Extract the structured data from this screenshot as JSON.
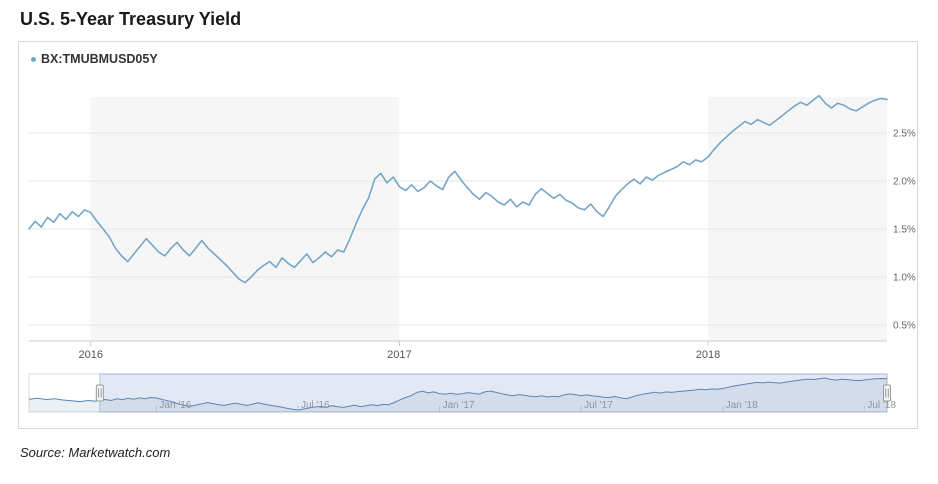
{
  "page": {
    "title": "U.S. 5-Year Treasury Yield",
    "source": "Source: Marketwatch.com"
  },
  "legend": {
    "symbol": "BX:TMUBMUSD05Y"
  },
  "colors": {
    "line": "#74a6c9",
    "nav_line": "#5b84ae",
    "band": "#f6f6f6",
    "grid": "#e6e6e6",
    "axis": "#cccccc",
    "tick_label": "#666666",
    "x_label": "#555555",
    "nav_label": "#999999",
    "mask": "#6685c2",
    "mask_edge": "#8aa4cc",
    "handle_fill": "#f4f4f4",
    "handle_stroke": "#999999",
    "legend_dot": "#74a6c9"
  },
  "chart_data": {
    "type": "line",
    "title": "U.S. 5-Year Treasury Yield",
    "series_name": "BX:TMUBMUSD05Y",
    "xlabel": "",
    "ylabel": "",
    "y_ticks": [
      "0.5%",
      "1.0%",
      "1.5%",
      "2.0%",
      "2.5%"
    ],
    "y_tick_values": [
      0.5,
      1.0,
      1.5,
      2.0,
      2.5
    ],
    "x_ticks_main": [
      {
        "t": 2016.0,
        "label": "2016"
      },
      {
        "t": 2017.0,
        "label": "2017"
      },
      {
        "t": 2018.0,
        "label": "2018"
      }
    ],
    "x_ticks_nav": [
      {
        "t": 2016.0,
        "label": "Jan '16"
      },
      {
        "t": 2016.5,
        "label": "Jul '16"
      },
      {
        "t": 2017.0,
        "label": "Jan '17"
      },
      {
        "t": 2017.5,
        "label": "Jul '17"
      },
      {
        "t": 2018.0,
        "label": "Jan '18"
      },
      {
        "t": 2018.5,
        "label": "Jul '18"
      }
    ],
    "main_window": [
      2015.8,
      2018.58
    ],
    "ylim_main": [
      0.333,
      2.875
    ],
    "bands": [
      [
        2016.0,
        2017.0
      ],
      [
        2018.0,
        2018.58
      ]
    ],
    "grid": true,
    "points": [
      [
        2015.55,
        1.6
      ],
      [
        2015.58,
        1.66
      ],
      [
        2015.61,
        1.58
      ],
      [
        2015.64,
        1.63
      ],
      [
        2015.67,
        1.55
      ],
      [
        2015.7,
        1.5
      ],
      [
        2015.73,
        1.45
      ],
      [
        2015.76,
        1.52
      ],
      [
        2015.78,
        1.48
      ],
      [
        2015.8,
        1.5
      ],
      [
        2015.82,
        1.58
      ],
      [
        2015.84,
        1.52
      ],
      [
        2015.86,
        1.62
      ],
      [
        2015.88,
        1.57
      ],
      [
        2015.9,
        1.66
      ],
      [
        2015.92,
        1.6
      ],
      [
        2015.94,
        1.68
      ],
      [
        2015.96,
        1.63
      ],
      [
        2015.98,
        1.7
      ],
      [
        2016.0,
        1.67
      ],
      [
        2016.02,
        1.58
      ],
      [
        2016.04,
        1.5
      ],
      [
        2016.06,
        1.42
      ],
      [
        2016.08,
        1.3
      ],
      [
        2016.1,
        1.22
      ],
      [
        2016.12,
        1.16
      ],
      [
        2016.14,
        1.24
      ],
      [
        2016.16,
        1.32
      ],
      [
        2016.18,
        1.4
      ],
      [
        2016.2,
        1.33
      ],
      [
        2016.22,
        1.26
      ],
      [
        2016.24,
        1.22
      ],
      [
        2016.26,
        1.3
      ],
      [
        2016.28,
        1.36
      ],
      [
        2016.3,
        1.28
      ],
      [
        2016.32,
        1.22
      ],
      [
        2016.34,
        1.3
      ],
      [
        2016.36,
        1.38
      ],
      [
        2016.38,
        1.3
      ],
      [
        2016.4,
        1.24
      ],
      [
        2016.42,
        1.18
      ],
      [
        2016.44,
        1.12
      ],
      [
        2016.46,
        1.05
      ],
      [
        2016.48,
        0.98
      ],
      [
        2016.5,
        0.94
      ],
      [
        2016.52,
        1.0
      ],
      [
        2016.54,
        1.07
      ],
      [
        2016.56,
        1.12
      ],
      [
        2016.58,
        1.16
      ],
      [
        2016.6,
        1.1
      ],
      [
        2016.62,
        1.2
      ],
      [
        2016.64,
        1.14
      ],
      [
        2016.66,
        1.1
      ],
      [
        2016.68,
        1.17
      ],
      [
        2016.7,
        1.24
      ],
      [
        2016.72,
        1.15
      ],
      [
        2016.74,
        1.2
      ],
      [
        2016.76,
        1.26
      ],
      [
        2016.78,
        1.21
      ],
      [
        2016.8,
        1.28
      ],
      [
        2016.82,
        1.26
      ],
      [
        2016.84,
        1.4
      ],
      [
        2016.86,
        1.56
      ],
      [
        2016.88,
        1.7
      ],
      [
        2016.9,
        1.82
      ],
      [
        2016.92,
        2.02
      ],
      [
        2016.94,
        2.08
      ],
      [
        2016.96,
        1.98
      ],
      [
        2016.98,
        2.04
      ],
      [
        2017.0,
        1.94
      ],
      [
        2017.02,
        1.9
      ],
      [
        2017.04,
        1.96
      ],
      [
        2017.06,
        1.89
      ],
      [
        2017.08,
        1.93
      ],
      [
        2017.1,
        2.0
      ],
      [
        2017.12,
        1.95
      ],
      [
        2017.14,
        1.91
      ],
      [
        2017.16,
        2.04
      ],
      [
        2017.18,
        2.1
      ],
      [
        2017.2,
        2.01
      ],
      [
        2017.22,
        1.93
      ],
      [
        2017.24,
        1.86
      ],
      [
        2017.26,
        1.81
      ],
      [
        2017.28,
        1.88
      ],
      [
        2017.3,
        1.84
      ],
      [
        2017.32,
        1.78
      ],
      [
        2017.34,
        1.75
      ],
      [
        2017.36,
        1.81
      ],
      [
        2017.38,
        1.73
      ],
      [
        2017.4,
        1.78
      ],
      [
        2017.42,
        1.75
      ],
      [
        2017.44,
        1.86
      ],
      [
        2017.46,
        1.92
      ],
      [
        2017.48,
        1.87
      ],
      [
        2017.5,
        1.82
      ],
      [
        2017.52,
        1.86
      ],
      [
        2017.54,
        1.8
      ],
      [
        2017.56,
        1.77
      ],
      [
        2017.58,
        1.72
      ],
      [
        2017.6,
        1.7
      ],
      [
        2017.62,
        1.76
      ],
      [
        2017.64,
        1.68
      ],
      [
        2017.66,
        1.63
      ],
      [
        2017.68,
        1.73
      ],
      [
        2017.7,
        1.84
      ],
      [
        2017.72,
        1.91
      ],
      [
        2017.74,
        1.97
      ],
      [
        2017.76,
        2.02
      ],
      [
        2017.78,
        1.97
      ],
      [
        2017.8,
        2.04
      ],
      [
        2017.82,
        2.01
      ],
      [
        2017.84,
        2.06
      ],
      [
        2017.86,
        2.09
      ],
      [
        2017.88,
        2.12
      ],
      [
        2017.9,
        2.15
      ],
      [
        2017.92,
        2.2
      ],
      [
        2017.94,
        2.17
      ],
      [
        2017.96,
        2.22
      ],
      [
        2017.98,
        2.2
      ],
      [
        2018.0,
        2.25
      ],
      [
        2018.02,
        2.33
      ],
      [
        2018.04,
        2.4
      ],
      [
        2018.06,
        2.46
      ],
      [
        2018.08,
        2.52
      ],
      [
        2018.1,
        2.57
      ],
      [
        2018.12,
        2.62
      ],
      [
        2018.14,
        2.59
      ],
      [
        2018.16,
        2.64
      ],
      [
        2018.18,
        2.61
      ],
      [
        2018.2,
        2.58
      ],
      [
        2018.22,
        2.63
      ],
      [
        2018.24,
        2.68
      ],
      [
        2018.26,
        2.73
      ],
      [
        2018.28,
        2.78
      ],
      [
        2018.3,
        2.82
      ],
      [
        2018.32,
        2.79
      ],
      [
        2018.34,
        2.84
      ],
      [
        2018.36,
        2.89
      ],
      [
        2018.38,
        2.81
      ],
      [
        2018.4,
        2.76
      ],
      [
        2018.42,
        2.81
      ],
      [
        2018.44,
        2.79
      ],
      [
        2018.46,
        2.75
      ],
      [
        2018.48,
        2.73
      ],
      [
        2018.5,
        2.77
      ],
      [
        2018.52,
        2.81
      ],
      [
        2018.54,
        2.84
      ],
      [
        2018.56,
        2.86
      ],
      [
        2018.58,
        2.85
      ]
    ]
  }
}
